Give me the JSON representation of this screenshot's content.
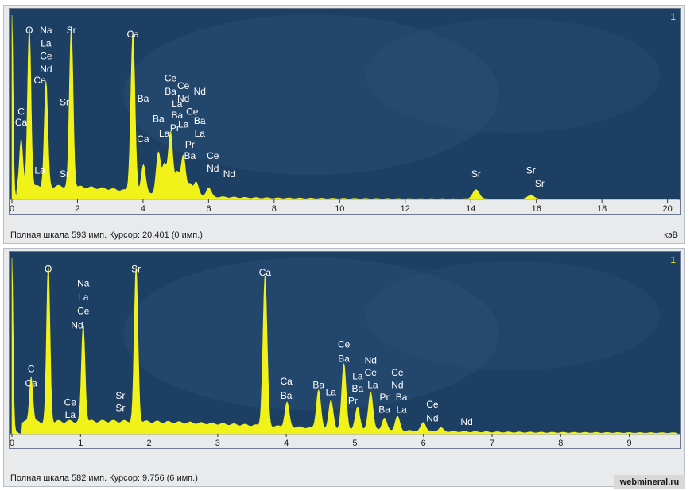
{
  "chart_data": [
    {
      "type": "area",
      "x_range": [
        0,
        20.3
      ],
      "xticks": [
        "0",
        "2",
        "4",
        "6",
        "8",
        "10",
        "12",
        "14",
        "16",
        "18",
        "20"
      ],
      "corner_label": "1",
      "status": "Полная шкала 593 имп. Курсор: 20.401  (0 имп.)",
      "xunit": "кэВ",
      "full_scale": 593,
      "cursor_kev": 20.401,
      "cursor_counts": 0,
      "background_color": "#1d3f63",
      "spectrum_color": "#f2f21b",
      "peaks": [
        {
          "x": 0.0,
          "height": 1.0
        },
        {
          "x": 0.28,
          "height": 0.27
        },
        {
          "x": 0.53,
          "height": 0.88
        },
        {
          "x": 1.04,
          "height": 0.57
        },
        {
          "x": 1.81,
          "height": 0.87
        },
        {
          "x": 3.69,
          "height": 0.87
        },
        {
          "x": 4.01,
          "height": 0.15
        },
        {
          "x": 4.47,
          "height": 0.22
        },
        {
          "x": 4.65,
          "height": 0.16
        },
        {
          "x": 4.84,
          "height": 0.34
        },
        {
          "x": 5.04,
          "height": 0.12
        },
        {
          "x": 5.23,
          "height": 0.22
        },
        {
          "x": 5.43,
          "height": 0.06
        },
        {
          "x": 5.62,
          "height": 0.08
        },
        {
          "x": 6.0,
          "height": 0.05
        },
        {
          "x": 14.16,
          "height": 0.05
        },
        {
          "x": 15.83,
          "height": 0.02
        }
      ],
      "labels": [
        {
          "text": "Na",
          "x": 1.04,
          "y": 0.9
        },
        {
          "text": "La",
          "x": 1.04,
          "y": 0.83
        },
        {
          "text": "Ce",
          "x": 1.04,
          "y": 0.76
        },
        {
          "text": "Nd",
          "x": 1.04,
          "y": 0.69
        },
        {
          "text": "Ce",
          "x": 0.85,
          "y": 0.63
        },
        {
          "text": "O",
          "x": 0.53,
          "y": 0.9
        },
        {
          "text": "Sr",
          "x": 1.81,
          "y": 0.9
        },
        {
          "text": "Ca",
          "x": 3.69,
          "y": 0.88
        },
        {
          "text": "C",
          "x": 0.28,
          "y": 0.46
        },
        {
          "text": "Ca",
          "x": 0.28,
          "y": 0.4
        },
        {
          "text": "La",
          "x": 0.85,
          "y": 0.14
        },
        {
          "text": "Sr",
          "x": 1.6,
          "y": 0.12
        },
        {
          "text": "Sr",
          "x": 1.6,
          "y": 0.51
        },
        {
          "text": "Ba",
          "x": 4.0,
          "y": 0.53
        },
        {
          "text": "Ca",
          "x": 4.0,
          "y": 0.31
        },
        {
          "text": "Ce",
          "x": 4.84,
          "y": 0.64
        },
        {
          "text": "Ba",
          "x": 4.84,
          "y": 0.57
        },
        {
          "text": "Ce",
          "x": 5.23,
          "y": 0.6
        },
        {
          "text": "Nd",
          "x": 5.23,
          "y": 0.53
        },
        {
          "text": "Nd",
          "x": 5.73,
          "y": 0.57
        },
        {
          "text": "La",
          "x": 5.04,
          "y": 0.5
        },
        {
          "text": "Ce",
          "x": 5.5,
          "y": 0.46
        },
        {
          "text": "Ba",
          "x": 4.47,
          "y": 0.42
        },
        {
          "text": "Ba",
          "x": 5.04,
          "y": 0.44
        },
        {
          "text": "Ba",
          "x": 5.73,
          "y": 0.41
        },
        {
          "text": "La",
          "x": 5.23,
          "y": 0.39
        },
        {
          "text": "Pr",
          "x": 4.97,
          "y": 0.37
        },
        {
          "text": "La",
          "x": 4.65,
          "y": 0.34
        },
        {
          "text": "La",
          "x": 5.73,
          "y": 0.34
        },
        {
          "text": "Pr",
          "x": 5.43,
          "y": 0.28
        },
        {
          "text": "Ba",
          "x": 5.43,
          "y": 0.22
        },
        {
          "text": "Ce",
          "x": 6.13,
          "y": 0.22
        },
        {
          "text": "Nd",
          "x": 6.13,
          "y": 0.15
        },
        {
          "text": "Nd",
          "x": 6.63,
          "y": 0.12
        },
        {
          "text": "Sr",
          "x": 14.16,
          "y": 0.12
        },
        {
          "text": "Sr",
          "x": 15.83,
          "y": 0.14
        },
        {
          "text": "Sr",
          "x": 16.1,
          "y": 0.07
        }
      ]
    },
    {
      "type": "area",
      "x_range": [
        0,
        9.7
      ],
      "xticks": [
        "0",
        "1",
        "2",
        "3",
        "4",
        "5",
        "6",
        "7",
        "8",
        "9"
      ],
      "corner_label": "1",
      "status": "Полная шкала 582 имп. Курсор: 9.756  (6 имп.)",
      "xunit": "кэВ",
      "full_scale": 582,
      "cursor_kev": 9.756,
      "cursor_counts": 6,
      "background_color": "#1d3f63",
      "spectrum_color": "#f2f21b",
      "peaks": [
        {
          "x": 0.0,
          "height": 1.0
        },
        {
          "x": 0.28,
          "height": 0.27
        },
        {
          "x": 0.53,
          "height": 0.9
        },
        {
          "x": 1.04,
          "height": 0.56
        },
        {
          "x": 1.81,
          "height": 0.88
        },
        {
          "x": 3.69,
          "height": 0.86
        },
        {
          "x": 4.01,
          "height": 0.14
        },
        {
          "x": 4.47,
          "height": 0.22
        },
        {
          "x": 4.65,
          "height": 0.16
        },
        {
          "x": 4.84,
          "height": 0.37
        },
        {
          "x": 5.04,
          "height": 0.13
        },
        {
          "x": 5.23,
          "height": 0.22
        },
        {
          "x": 5.43,
          "height": 0.07
        },
        {
          "x": 5.62,
          "height": 0.08
        },
        {
          "x": 6.0,
          "height": 0.05
        },
        {
          "x": 6.25,
          "height": 0.02
        }
      ],
      "labels": [
        {
          "text": "O",
          "x": 0.53,
          "y": 0.92
        },
        {
          "text": "Na",
          "x": 1.04,
          "y": 0.84
        },
        {
          "text": "La",
          "x": 1.04,
          "y": 0.76
        },
        {
          "text": "Ce",
          "x": 1.04,
          "y": 0.68
        },
        {
          "text": "Nd",
          "x": 0.95,
          "y": 0.6
        },
        {
          "text": "Sr",
          "x": 1.81,
          "y": 0.92
        },
        {
          "text": "Ca",
          "x": 3.69,
          "y": 0.9
        },
        {
          "text": "C",
          "x": 0.28,
          "y": 0.35
        },
        {
          "text": "Ca",
          "x": 0.28,
          "y": 0.27
        },
        {
          "text": "Ce",
          "x": 0.85,
          "y": 0.16
        },
        {
          "text": "La",
          "x": 0.85,
          "y": 0.09
        },
        {
          "text": "Sr",
          "x": 1.58,
          "y": 0.2
        },
        {
          "text": "Sr",
          "x": 1.58,
          "y": 0.13
        },
        {
          "text": "Ca",
          "x": 4.0,
          "y": 0.28
        },
        {
          "text": "Ba",
          "x": 4.0,
          "y": 0.2
        },
        {
          "text": "Ce",
          "x": 4.84,
          "y": 0.49
        },
        {
          "text": "Ba",
          "x": 4.84,
          "y": 0.41
        },
        {
          "text": "Nd",
          "x": 5.23,
          "y": 0.4
        },
        {
          "text": "Ce",
          "x": 5.23,
          "y": 0.33
        },
        {
          "text": "La",
          "x": 5.04,
          "y": 0.31
        },
        {
          "text": "Ba",
          "x": 5.04,
          "y": 0.24
        },
        {
          "text": "Ce",
          "x": 5.62,
          "y": 0.33
        },
        {
          "text": "La",
          "x": 5.26,
          "y": 0.26
        },
        {
          "text": "Nd",
          "x": 5.62,
          "y": 0.26
        },
        {
          "text": "Ba",
          "x": 4.47,
          "y": 0.26
        },
        {
          "text": "La",
          "x": 4.65,
          "y": 0.22
        },
        {
          "text": "Pr",
          "x": 4.97,
          "y": 0.17
        },
        {
          "text": "Pr",
          "x": 5.43,
          "y": 0.19
        },
        {
          "text": "Ba",
          "x": 5.68,
          "y": 0.19
        },
        {
          "text": "Ba",
          "x": 5.43,
          "y": 0.12
        },
        {
          "text": "La",
          "x": 5.68,
          "y": 0.12
        },
        {
          "text": "Ce",
          "x": 6.13,
          "y": 0.15
        },
        {
          "text": "Nd",
          "x": 6.13,
          "y": 0.07
        },
        {
          "text": "Nd",
          "x": 6.63,
          "y": 0.05
        }
      ]
    }
  ],
  "watermark": "webmineral.ru"
}
